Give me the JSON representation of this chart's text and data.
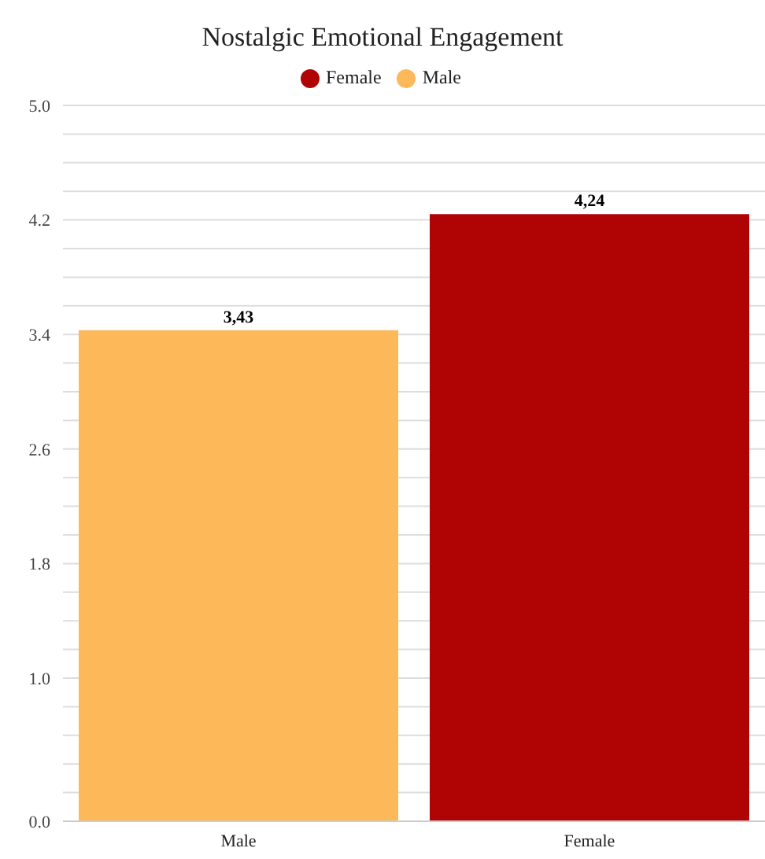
{
  "chart_data": {
    "type": "bar",
    "title": "Nostalgic Emotional Engagement",
    "categories": [
      "Male",
      "Female"
    ],
    "stacked": true,
    "series": [
      {
        "name": "Male",
        "color": "#fdb85a",
        "values": [
          3.43,
          null
        ],
        "value_labels": [
          "3,43",
          null
        ]
      },
      {
        "name": "Female",
        "color": "#b00404",
        "values": [
          null,
          4.24
        ],
        "value_labels": [
          null,
          "4,24"
        ]
      }
    ],
    "ylim": [
      0,
      5
    ],
    "yticks": [
      {
        "value": 0,
        "label": "0.0"
      },
      {
        "value": 0.2,
        "label": null
      },
      {
        "value": 0.4,
        "label": null
      },
      {
        "value": 0.6,
        "label": null
      },
      {
        "value": 0.8,
        "label": null
      },
      {
        "value": 1,
        "label": "1.0"
      },
      {
        "value": 1.2,
        "label": null
      },
      {
        "value": 1.4,
        "label": null
      },
      {
        "value": 1.6,
        "label": null
      },
      1.8,
      {
        "value": 2,
        "label": null
      },
      {
        "value": 2.2,
        "label": null
      },
      {
        "value": 2.4,
        "label": null
      },
      2.6,
      {
        "value": 2.8,
        "label": null
      },
      {
        "value": 3,
        "label": null
      },
      {
        "value": 3.2,
        "label": null
      },
      3.4,
      {
        "value": 3.6,
        "label": null
      },
      {
        "value": 3.8,
        "label": null
      },
      {
        "value": 4,
        "label": null
      },
      4.2,
      {
        "value": 4.4,
        "label": null
      },
      {
        "value": 4.6,
        "label": null
      },
      {
        "value": 4.8,
        "label": null
      },
      {
        "value": 5,
        "label": "5.0"
      }
    ],
    "grid": "y",
    "legend": "top"
  }
}
